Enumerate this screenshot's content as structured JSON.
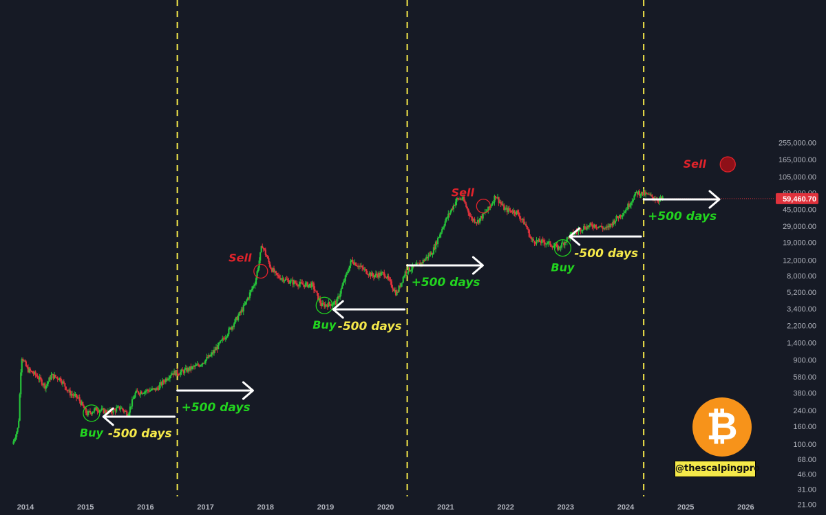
{
  "chart_data": {
    "type": "line",
    "scale": "log",
    "x_ticks": [
      "2014",
      "2015",
      "2016",
      "2017",
      "2018",
      "2019",
      "2020",
      "2021",
      "2022",
      "2023",
      "2024",
      "2025",
      "2026"
    ],
    "y_ticks": [
      "255,000.00",
      "165,000.00",
      "105,000.00",
      "69,000.00",
      "45,000.00",
      "29,000.00",
      "19,000.00",
      "12,000.00",
      "8,000.00",
      "5,200.00",
      "3,400.00",
      "2,200.00",
      "1,400.00",
      "900.00",
      "580.00",
      "380.00",
      "240.00",
      "160.00",
      "100.00",
      "68.00",
      "46.00",
      "31.00",
      "21.00"
    ],
    "last_price": "59,460.70",
    "series": [
      {
        "points": [
          [
            2013.8,
            100
          ],
          [
            2013.9,
            160
          ],
          [
            2013.95,
            1000
          ],
          [
            2014.05,
            700
          ],
          [
            2014.2,
            600
          ],
          [
            2014.35,
            450
          ],
          [
            2014.45,
            600
          ],
          [
            2014.6,
            550
          ],
          [
            2014.75,
            380
          ],
          [
            2014.9,
            330
          ],
          [
            2015.04,
            220
          ],
          [
            2015.2,
            250
          ],
          [
            2015.4,
            230
          ],
          [
            2015.6,
            260
          ],
          [
            2015.72,
            220
          ],
          [
            2015.85,
            380
          ],
          [
            2016.0,
            400
          ],
          [
            2016.2,
            420
          ],
          [
            2016.45,
            640
          ],
          [
            2016.6,
            650
          ],
          [
            2016.9,
            780
          ],
          [
            2017.1,
            1000
          ],
          [
            2017.3,
            1500
          ],
          [
            2017.5,
            2400
          ],
          [
            2017.65,
            3500
          ],
          [
            2017.85,
            7000
          ],
          [
            2017.96,
            18000
          ],
          [
            2018.1,
            10000
          ],
          [
            2018.2,
            8000
          ],
          [
            2018.4,
            7000
          ],
          [
            2018.6,
            6400
          ],
          [
            2018.8,
            6300
          ],
          [
            2018.95,
            3700
          ],
          [
            2019.2,
            4000
          ],
          [
            2019.45,
            12000
          ],
          [
            2019.6,
            10000
          ],
          [
            2019.8,
            8000
          ],
          [
            2020.0,
            8500
          ],
          [
            2020.2,
            5000
          ],
          [
            2020.35,
            9000
          ],
          [
            2020.6,
            11000
          ],
          [
            2020.8,
            15000
          ],
          [
            2021.0,
            32000
          ],
          [
            2021.2,
            58000
          ],
          [
            2021.3,
            60000
          ],
          [
            2021.45,
            35000
          ],
          [
            2021.55,
            33000
          ],
          [
            2021.75,
            47000
          ],
          [
            2021.85,
            65000
          ],
          [
            2022.0,
            45000
          ],
          [
            2022.2,
            42000
          ],
          [
            2022.35,
            30000
          ],
          [
            2022.45,
            20000
          ],
          [
            2022.7,
            19000
          ],
          [
            2022.9,
            16500
          ],
          [
            2023.1,
            23000
          ],
          [
            2023.3,
            28000
          ],
          [
            2023.5,
            30000
          ],
          [
            2023.7,
            27000
          ],
          [
            2023.85,
            35000
          ],
          [
            2024.0,
            43000
          ],
          [
            2024.2,
            70000
          ],
          [
            2024.4,
            65000
          ],
          [
            2024.55,
            58000
          ],
          [
            2024.63,
            59460.7
          ]
        ]
      }
    ],
    "annotations": {
      "buy": "Buy",
      "sell": "Sell",
      "plus": "+500 days",
      "minus": "-500 days"
    },
    "markers": [
      {
        "label": "Buy",
        "x": 2015.1,
        "y": 225,
        "color": "#22d41f"
      },
      {
        "label": "Sell",
        "x": 2017.92,
        "y": 9000,
        "color": "#e0232b"
      },
      {
        "label": "Buy",
        "x": 2018.98,
        "y": 3700,
        "color": "#22d41f"
      },
      {
        "label": "Sell",
        "x": 2021.63,
        "y": 49000,
        "color": "#e0232b"
      },
      {
        "label": "Buy",
        "x": 2022.95,
        "y": 16500,
        "color": "#22d41f"
      },
      {
        "label": "Sell",
        "x": 2025.7,
        "y": 145000,
        "color": "#e0232b"
      }
    ],
    "halvings": [
      2016.53,
      2020.36,
      2024.3
    ],
    "colors": {
      "up": "#26c13a",
      "down": "#e0323c",
      "accent": "#f5e94a",
      "price_tag": "#e0323c",
      "buy": "#22d41f",
      "sell": "#e0232b"
    }
  },
  "brand": {
    "handle": "@thescalpingpro",
    "logo_symbol": "₿",
    "logo_icon": "bitcoin-logo-icon",
    "logo_color": "#f7931a"
  }
}
